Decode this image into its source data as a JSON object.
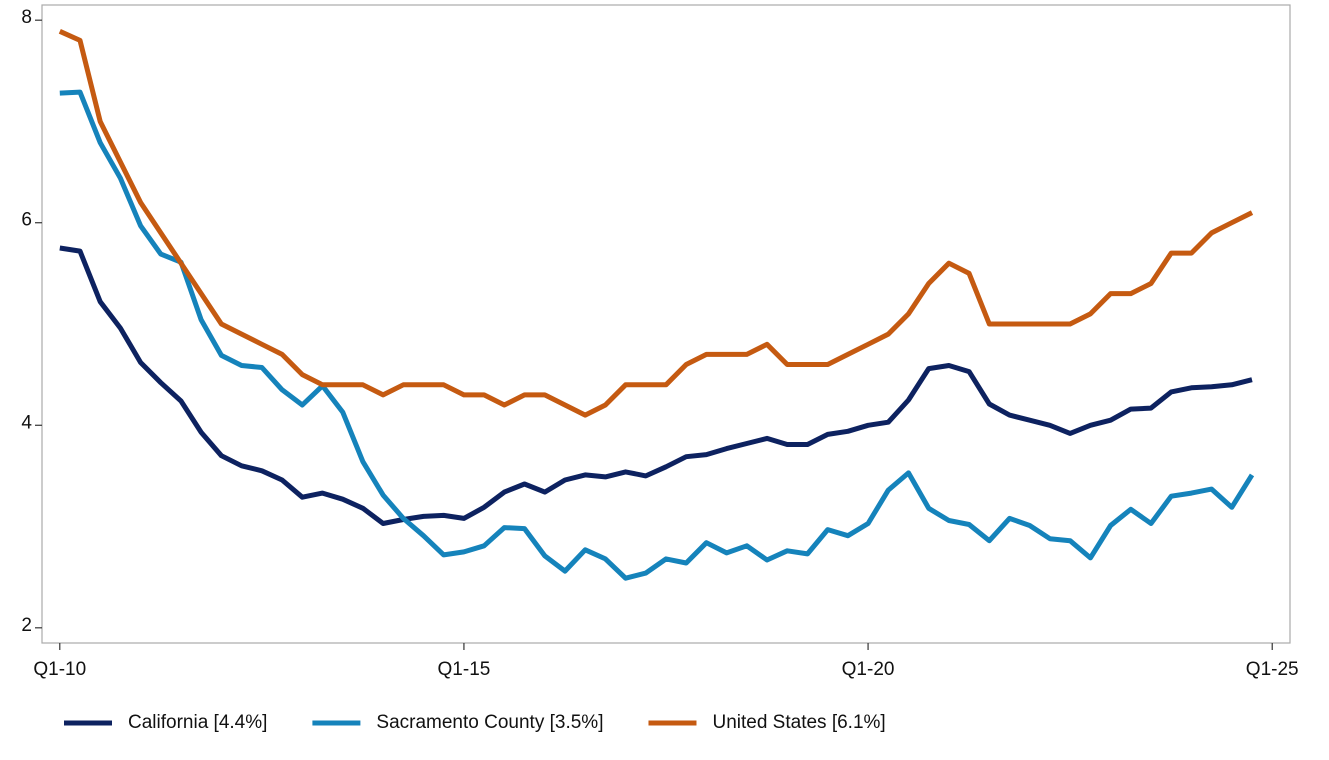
{
  "chart_data": {
    "type": "line",
    "x": [
      2010,
      2010.25,
      2010.5,
      2010.75,
      2011,
      2011.25,
      2011.5,
      2011.75,
      2012,
      2012.25,
      2012.5,
      2012.75,
      2013,
      2013.25,
      2013.5,
      2013.75,
      2014,
      2014.25,
      2014.5,
      2014.75,
      2015,
      2015.25,
      2015.5,
      2015.75,
      2016,
      2016.25,
      2016.5,
      2016.75,
      2017,
      2017.25,
      2017.5,
      2017.75,
      2018,
      2018.25,
      2018.5,
      2018.75,
      2019,
      2019.25,
      2019.5,
      2019.75,
      2020,
      2020.25,
      2020.5,
      2020.75,
      2021,
      2021.25,
      2021.5,
      2021.75,
      2022,
      2022.25,
      2022.5,
      2022.75,
      2023,
      2023.25,
      2023.5,
      2023.75,
      2024,
      2024.25,
      2024.5,
      2024.75
    ],
    "series": [
      {
        "name": "California [4.4%]",
        "color": "#0d2260",
        "values": [
          5.75,
          5.72,
          5.22,
          4.96,
          4.62,
          4.42,
          4.24,
          3.93,
          3.7,
          3.6,
          3.55,
          3.46,
          3.29,
          3.33,
          3.27,
          3.18,
          3.03,
          3.07,
          3.1,
          3.11,
          3.08,
          3.19,
          3.34,
          3.42,
          3.34,
          3.46,
          3.51,
          3.49,
          3.54,
          3.5,
          3.59,
          3.69,
          3.71,
          3.77,
          3.82,
          3.87,
          3.81,
          3.81,
          3.91,
          3.94,
          4.0,
          4.03,
          4.25,
          4.56,
          4.59,
          4.53,
          4.21,
          4.1,
          4.05,
          4.0,
          3.92,
          4.0,
          4.05,
          4.16,
          4.17,
          4.33,
          4.37,
          4.38,
          4.4,
          4.45
        ]
      },
      {
        "name": "Sacramento County [3.5%]",
        "color": "#1583bb",
        "values": [
          7.28,
          7.29,
          6.79,
          6.44,
          5.97,
          5.69,
          5.61,
          5.04,
          4.69,
          4.59,
          4.57,
          4.35,
          4.2,
          4.39,
          4.13,
          3.64,
          3.31,
          3.08,
          2.91,
          2.72,
          2.75,
          2.81,
          2.99,
          2.98,
          2.71,
          2.56,
          2.77,
          2.68,
          2.49,
          2.54,
          2.68,
          2.64,
          2.84,
          2.74,
          2.81,
          2.67,
          2.76,
          2.73,
          2.97,
          2.91,
          3.03,
          3.36,
          3.53,
          3.18,
          3.06,
          3.02,
          2.86,
          3.08,
          3.01,
          2.88,
          2.86,
          2.69,
          3.01,
          3.17,
          3.03,
          3.3,
          3.33,
          3.37,
          3.19,
          3.51
        ]
      },
      {
        "name": "United States [6.1%]",
        "color": "#c55a11",
        "values": [
          7.89,
          7.8,
          7.0,
          6.6,
          6.2,
          5.9,
          5.6,
          5.3,
          5.0,
          4.9,
          4.8,
          4.7,
          4.5,
          4.4,
          4.4,
          4.4,
          4.3,
          4.4,
          4.4,
          4.4,
          4.3,
          4.3,
          4.2,
          4.3,
          4.3,
          4.2,
          4.1,
          4.2,
          4.4,
          4.4,
          4.4,
          4.6,
          4.7,
          4.7,
          4.7,
          4.8,
          4.6,
          4.6,
          4.6,
          4.7,
          4.8,
          4.9,
          5.1,
          5.4,
          5.6,
          5.5,
          5.0,
          5.0,
          5.0,
          5.0,
          5.0,
          5.1,
          5.3,
          5.3,
          5.4,
          5.7,
          5.7,
          5.9,
          6.0,
          6.1
        ]
      }
    ],
    "xlim": [
      2009.78,
      2025.22
    ],
    "xticks": [
      {
        "value": 2010,
        "label": "Q1-10"
      },
      {
        "value": 2015,
        "label": "Q1-15"
      },
      {
        "value": 2020,
        "label": "Q1-20"
      },
      {
        "value": 2025,
        "label": "Q1-25"
      }
    ],
    "ylim": [
      1.85,
      8.15
    ],
    "yticks": [
      2,
      4,
      6,
      8
    ],
    "grid": false,
    "legend": "bottom"
  }
}
